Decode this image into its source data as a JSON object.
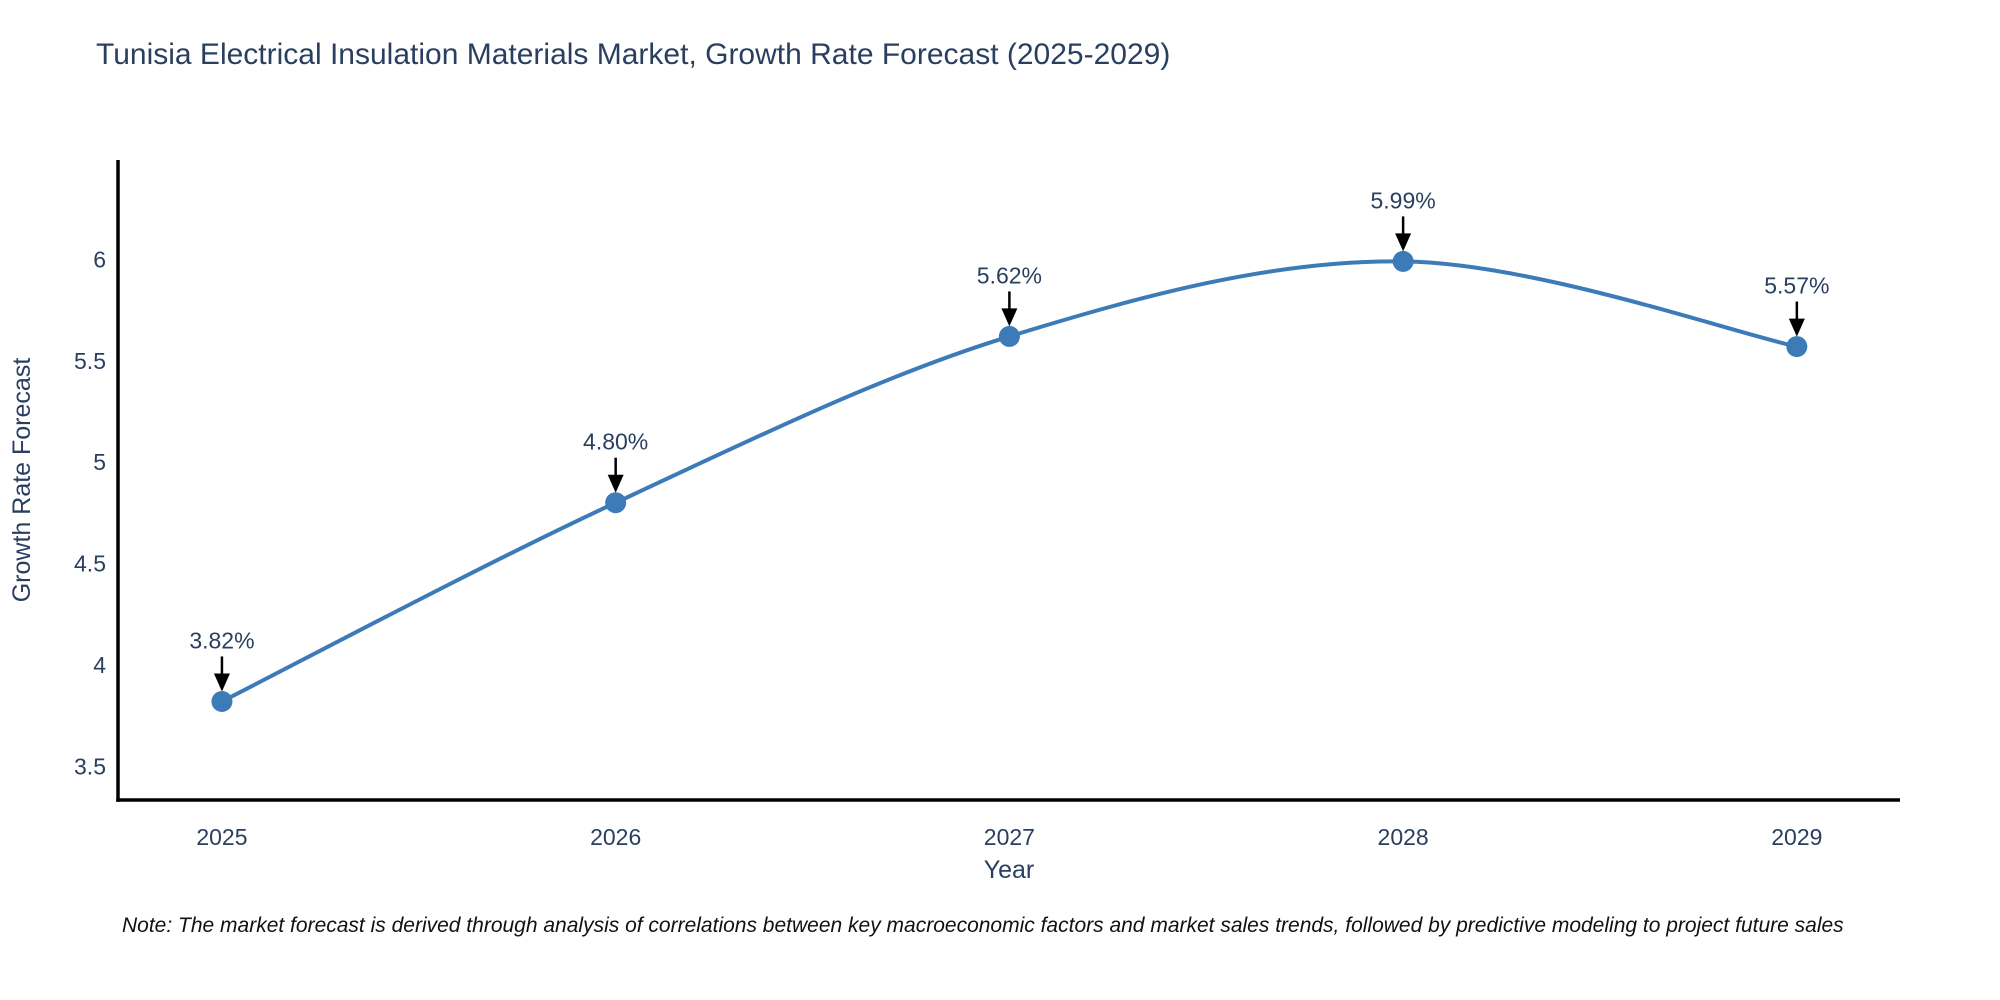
{
  "title": "Tunisia Electrical Insulation Materials Market, Growth Rate Forecast (2025-2029)",
  "note": "Note: The market forecast is derived through analysis of correlations between key macroeconomic factors and market sales trends, followed by predictive modeling to project future sales",
  "chart_data": {
    "type": "line",
    "title": "Tunisia Electrical Insulation Materials Market, Growth Rate Forecast (2025-2029)",
    "xlabel": "Year",
    "ylabel": "Growth Rate Forecast",
    "categories": [
      2025,
      2026,
      2027,
      2028,
      2029
    ],
    "values": [
      3.82,
      4.8,
      5.62,
      5.99,
      5.57
    ],
    "point_labels": [
      "3.82%",
      "4.80%",
      "5.62%",
      "5.99%",
      "5.57%"
    ],
    "yticks": [
      3.5,
      4,
      4.5,
      5,
      5.5,
      6
    ],
    "xticks": [
      "2025",
      "2026",
      "2027",
      "2028",
      "2029"
    ],
    "ylim": [
      3.334,
      6.49
    ],
    "xlim": [
      2024.736,
      2029.262
    ],
    "line_shape": "spline",
    "grid": false,
    "legend_position": "none",
    "annotation_style": "value label above point with black down-arrow",
    "colors": {
      "line": "#3d7ab8",
      "marker": "#3d7ab8",
      "axis": "#000000",
      "tick_text": "#2a3f5f",
      "annotation_text": "#2a3f5f",
      "arrow": "#000000",
      "background": "#ffffff"
    }
  }
}
